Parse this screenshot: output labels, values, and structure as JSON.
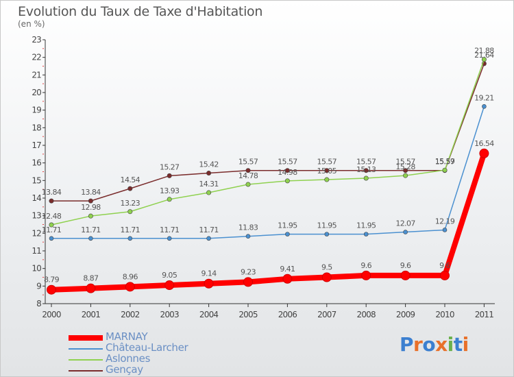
{
  "title": "Evolution du Taux de Taxe d'Habitation",
  "subtitle": "(en %)",
  "logo": {
    "text": "Proxiti",
    "colors": [
      "#3b7fd0",
      "#e8702a",
      "#3b7fd0",
      "#e8702a",
      "#6ab04c",
      "#3b7fd0",
      "#e8702a"
    ]
  },
  "chart_data": {
    "type": "line",
    "x": [
      "2000",
      "2001",
      "2002",
      "2003",
      "2004",
      "2005",
      "2006",
      "2007",
      "2008",
      "2009",
      "2010",
      "2011"
    ],
    "ylim": [
      8,
      23
    ],
    "yticks": [
      8,
      9,
      10,
      11,
      12,
      13,
      14,
      15,
      16,
      17,
      18,
      19,
      20,
      21,
      22,
      23
    ],
    "grid": false,
    "legend_position": "bottom-left",
    "series": [
      {
        "name": "MARNAY",
        "color": "#ff0000",
        "values": [
          8.79,
          8.87,
          8.96,
          9.05,
          9.14,
          9.23,
          9.41,
          9.5,
          9.6,
          9.6,
          9.6,
          16.54
        ],
        "labels": [
          "8.79",
          "8.87",
          "8.96",
          "9.05",
          "9.14",
          "9.23",
          "9.41",
          "9.5",
          "9.6",
          "9.6",
          "9.6",
          "16.54"
        ]
      },
      {
        "name": "Château-Larcher",
        "color": "#4a90d0",
        "values": [
          11.71,
          11.71,
          11.71,
          11.71,
          11.71,
          11.83,
          11.95,
          11.95,
          11.95,
          12.07,
          12.19,
          19.21
        ],
        "labels": [
          "11.71",
          "11.71",
          "11.71",
          "11.71",
          "11.71",
          "11.83",
          "11.95",
          "11.95",
          "11.95",
          "12.07",
          "12.19",
          "19.21"
        ]
      },
      {
        "name": "Aslonnes",
        "color": "#8fd14f",
        "values": [
          12.48,
          12.98,
          13.23,
          13.93,
          14.31,
          14.78,
          14.98,
          15.05,
          15.13,
          15.28,
          15.59,
          21.88
        ],
        "labels": [
          "12.48",
          "12.98",
          "13.23",
          "13.93",
          "14.31",
          "14.78",
          "14.98",
          "15.05",
          "15.13",
          "15.28",
          "15.59",
          "21.88"
        ]
      },
      {
        "name": "Gençay",
        "color": "#7a2c2c",
        "values": [
          13.84,
          13.84,
          14.54,
          15.27,
          15.42,
          15.57,
          15.57,
          15.57,
          15.57,
          15.57,
          15.57,
          21.64
        ],
        "labels": [
          "13.84",
          "13.84",
          "14.54",
          "15.27",
          "15.42",
          "15.57",
          "15.57",
          "15.57",
          "15.57",
          "15.57",
          "15.57",
          "21.64"
        ]
      }
    ]
  }
}
